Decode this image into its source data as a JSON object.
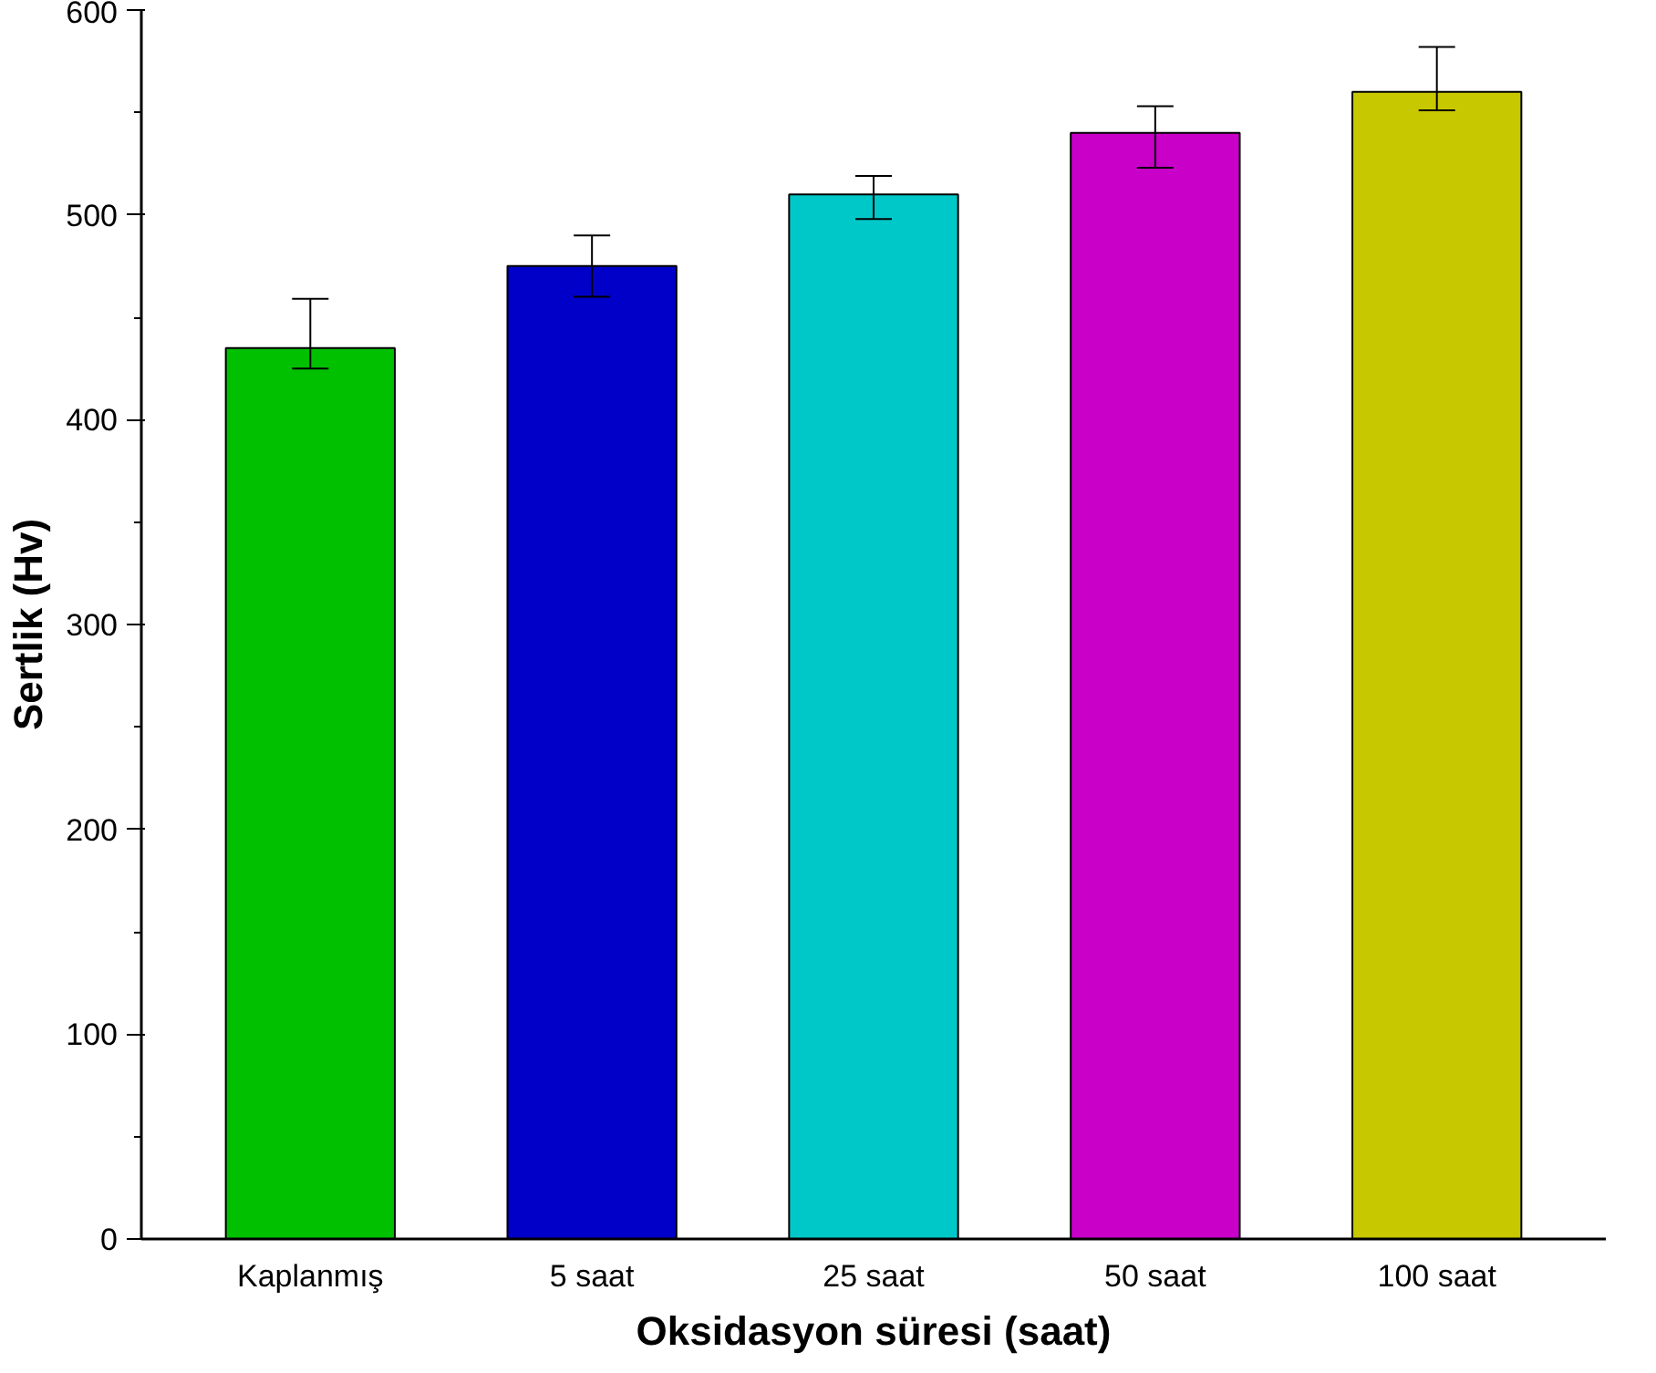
{
  "chart_data": {
    "type": "bar",
    "xlabel": "Oksidasyon süresi (saat)",
    "ylabel": "Sertlik (Hv)",
    "categories": [
      "Kaplanmış",
      "5 saat",
      "25 saat",
      "50 saat",
      "100 saat"
    ],
    "values": [
      435,
      475,
      510,
      540,
      560
    ],
    "colors": [
      "#00c000",
      "#0000c8",
      "#00c8c8",
      "#c800c8",
      "#c8c800"
    ],
    "errors": [
      [
        425,
        459
      ],
      [
        460,
        490
      ],
      [
        498,
        519
      ],
      [
        523,
        553
      ],
      [
        551,
        582
      ]
    ],
    "ylim": [
      0,
      600
    ],
    "yticks": [
      0,
      100,
      200,
      300,
      400,
      500,
      600
    ],
    "grid": false
  }
}
